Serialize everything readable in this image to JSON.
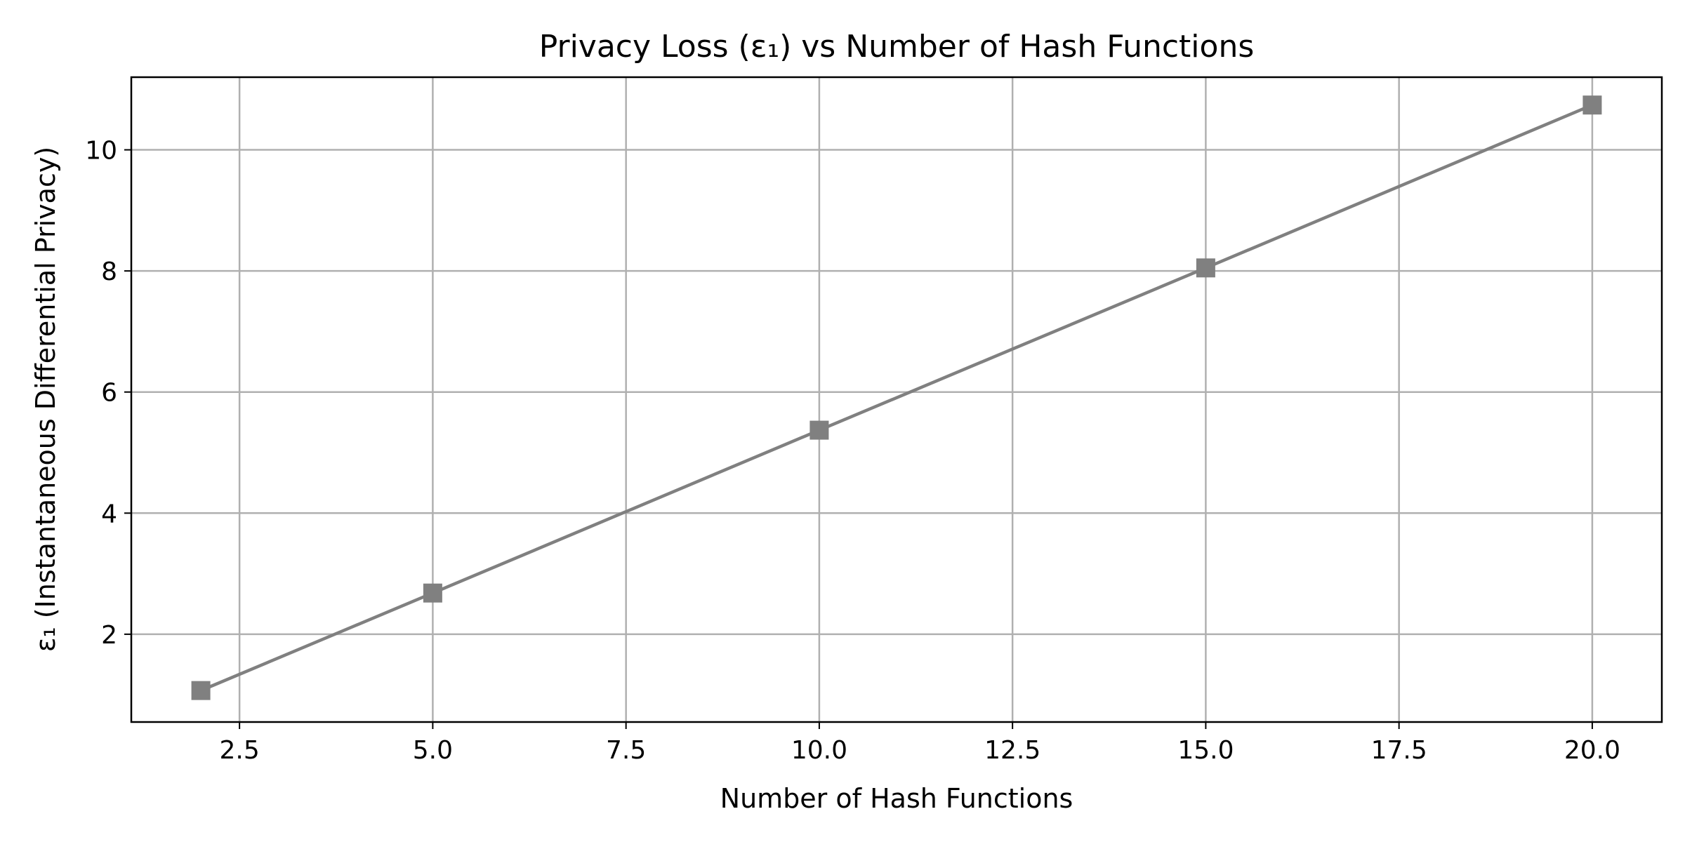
{
  "chart_data": {
    "type": "line",
    "title": "Privacy Loss (ε₁) vs Number of Hash Functions",
    "xlabel": "Number of Hash Functions",
    "ylabel": "ε₁ (Instantaneous Differential Privacy)",
    "xlim": [
      1.1,
      20.9
    ],
    "ylim": [
      0.55,
      11.2
    ],
    "xticks": [
      2.5,
      5.0,
      7.5,
      10.0,
      12.5,
      15.0,
      17.5,
      20.0
    ],
    "xtick_labels": [
      "2.5",
      "5.0",
      "7.5",
      "10.0",
      "12.5",
      "15.0",
      "17.5",
      "20.0"
    ],
    "yticks": [
      2,
      4,
      6,
      8,
      10
    ],
    "ytick_labels": [
      "2",
      "4",
      "6",
      "8",
      "10"
    ],
    "grid": true,
    "legend": "none",
    "series": [
      {
        "color": "#808080",
        "marker": "square",
        "x": [
          2,
          5,
          10,
          15,
          20
        ],
        "y": [
          1.07,
          2.68,
          5.37,
          8.05,
          10.74
        ]
      }
    ]
  }
}
